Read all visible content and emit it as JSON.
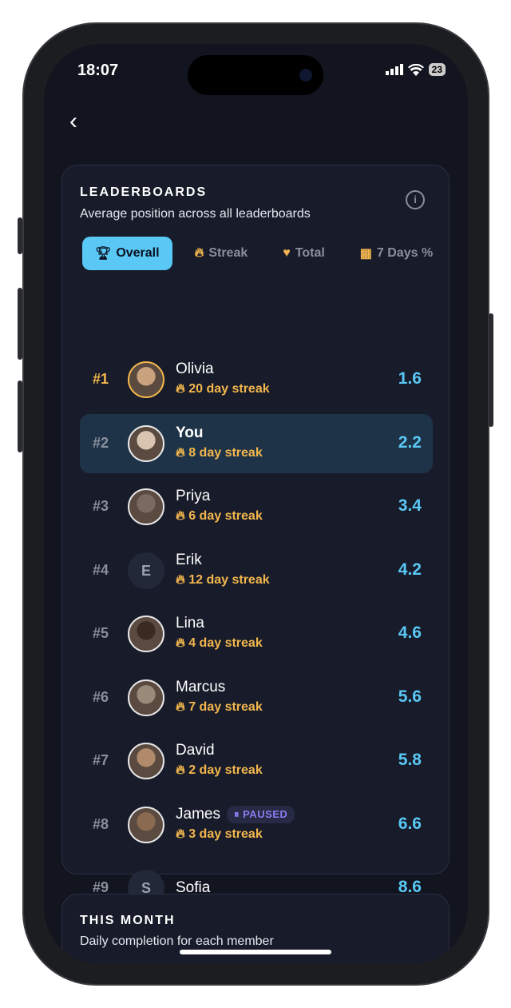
{
  "status": {
    "time": "18:07",
    "battery": "23"
  },
  "leaderboards": {
    "title": "LEADERBOARDS",
    "subtitle": "Average position across all leaderboards",
    "tabs": [
      {
        "label": "Overall",
        "icon": "trophy-icon",
        "active": true
      },
      {
        "label": "Streak",
        "icon": "flame-icon"
      },
      {
        "label": "Total",
        "icon": "heart-pulse-icon"
      },
      {
        "label": "7 Days %",
        "icon": "calendar-icon"
      }
    ],
    "rows": [
      {
        "rank": "#1",
        "name": "Olivia",
        "streak": "20 day streak",
        "score": "1.6"
      },
      {
        "rank": "#2",
        "name": "You",
        "streak": "8 day streak",
        "score": "2.2"
      },
      {
        "rank": "#3",
        "name": "Priya",
        "streak": "6 day streak",
        "score": "3.4"
      },
      {
        "rank": "#4",
        "name": "Erik",
        "initial": "E",
        "streak": "12 day streak",
        "score": "4.2"
      },
      {
        "rank": "#5",
        "name": "Lina",
        "streak": "4 day streak",
        "score": "4.6"
      },
      {
        "rank": "#6",
        "name": "Marcus",
        "streak": "7 day streak",
        "score": "5.6"
      },
      {
        "rank": "#7",
        "name": "David",
        "streak": "2 day streak",
        "score": "5.8"
      },
      {
        "rank": "#8",
        "name": "James",
        "badge": "PAUSED",
        "streak": "3 day streak",
        "score": "6.6"
      },
      {
        "rank": "#9",
        "name": "Sofia",
        "initial": "S",
        "score": "8.6"
      }
    ]
  },
  "this_month": {
    "title": "THIS MONTH",
    "subtitle": "Daily completion for each member"
  },
  "colors": {
    "accent": "#5ac8f5",
    "streak": "#f3b74d",
    "background": "#12151f",
    "highlight": "#1e3348"
  }
}
